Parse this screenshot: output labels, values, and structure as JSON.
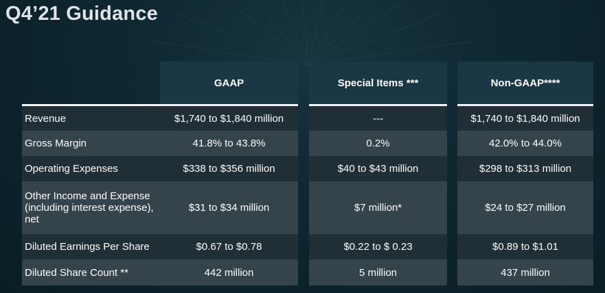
{
  "title": "Q4’21 Guidance",
  "columns": [
    "GAAP",
    "Special Items ***",
    "Non-GAAP****"
  ],
  "rows": [
    {
      "label": "Revenue",
      "gaap": "$1,740 to $1,840 million",
      "special": "---",
      "non_gaap": "$1,740 to $1,840 million"
    },
    {
      "label": "Gross Margin",
      "gaap": "41.8% to 43.8%",
      "special": "0.2%",
      "non_gaap": "42.0% to 44.0%"
    },
    {
      "label": "Operating Expenses",
      "gaap": "$338 to $356 million",
      "special": "$40 to $43 million",
      "non_gaap": "$298 to $313 million"
    },
    {
      "label": "Other Income and Expense (including interest expense), net",
      "gaap": "$31 to $34 million",
      "special": "$7 million*",
      "non_gaap": "$24 to $27 million"
    },
    {
      "label": "Diluted Earnings Per Share",
      "gaap": "$0.67 to $0.78",
      "special": "$0.22 to $ 0.23",
      "non_gaap": "$0.89 to $1.01"
    },
    {
      "label": "Diluted Share Count **",
      "gaap": "442 million",
      "special": "5 million",
      "non_gaap": "437 million"
    }
  ],
  "colors": {
    "background": "#0c222b",
    "header_fill": "#193745",
    "row_dark": "#202e35",
    "row_light": "#34444a",
    "rule": "#f2f4f5"
  }
}
